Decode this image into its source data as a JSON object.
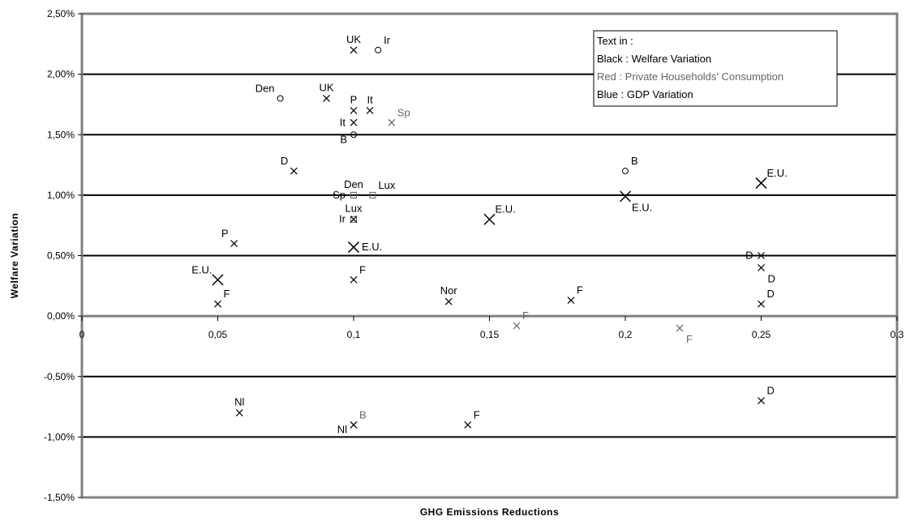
{
  "chart_data": {
    "type": "scatter",
    "xlabel": "GHG Emissions Reductions",
    "ylabel": "Welfare Variation",
    "xlim": [
      0,
      0.3
    ],
    "ylim": [
      -0.015,
      0.025
    ],
    "x_ticks": [
      0,
      0.05,
      0.1,
      0.15,
      0.2,
      0.25,
      0.3
    ],
    "x_tick_labels": [
      "0",
      "0,05",
      "0,1",
      "0,15",
      "0,2",
      "0,25",
      "0,3"
    ],
    "y_ticks": [
      0.025,
      0.02,
      0.015,
      0.01,
      0.005,
      0,
      -0.005,
      -0.01,
      -0.015
    ],
    "y_tick_labels": [
      "2,50%",
      "2,00%",
      "1,50%",
      "1,00%",
      "0,50%",
      "0,00%",
      "-0,50%",
      "-1,00%",
      "-1,50%"
    ],
    "grid": "horizontal major gridlines",
    "legend": {
      "placement": "top-right",
      "title": "Text in :",
      "entries": [
        {
          "text": "Black : Welfare Variation",
          "color": "#000000"
        },
        {
          "text": "Red : Private Households' Consumption",
          "color": "#666666"
        },
        {
          "text": "Blue : GDP Variation",
          "color": "#000000"
        }
      ]
    },
    "points": [
      {
        "x": 0.1,
        "y": 0.022,
        "marker": "x",
        "label": "UK",
        "label_pos": "top"
      },
      {
        "x": 0.109,
        "y": 0.022,
        "marker": "o",
        "label": "Ir",
        "label_pos": "top-right"
      },
      {
        "x": 0.073,
        "y": 0.018,
        "marker": "o",
        "label": "Den",
        "label_pos": "top-left"
      },
      {
        "x": 0.09,
        "y": 0.018,
        "marker": "x",
        "label": "UK",
        "label_pos": "top"
      },
      {
        "x": 0.1,
        "y": 0.017,
        "marker": "x",
        "label": "P",
        "label_pos": "top"
      },
      {
        "x": 0.106,
        "y": 0.017,
        "marker": "x",
        "label": "It",
        "label_pos": "top"
      },
      {
        "x": 0.1,
        "y": 0.016,
        "marker": "x",
        "label": "It",
        "label_pos": "left"
      },
      {
        "x": 0.114,
        "y": 0.016,
        "marker": "x",
        "label": "Sp",
        "label_pos": "top-right",
        "gray": true
      },
      {
        "x": 0.1,
        "y": 0.015,
        "marker": "o",
        "label": "B",
        "label_pos": "bottom-left"
      },
      {
        "x": 0.078,
        "y": 0.012,
        "marker": "x",
        "label": "D",
        "label_pos": "top-left"
      },
      {
        "x": 0.1,
        "y": 0.01,
        "marker": "sq",
        "label": "Den",
        "label_pos": "top"
      },
      {
        "x": 0.1,
        "y": 0.01,
        "marker": "sq",
        "label": "Sp",
        "label_pos": "left"
      },
      {
        "x": 0.107,
        "y": 0.01,
        "marker": "sq",
        "label": "Lux",
        "label_pos": "top-right"
      },
      {
        "x": 0.1,
        "y": 0.008,
        "marker": "sq",
        "label": "Lux",
        "label_pos": "top"
      },
      {
        "x": 0.1,
        "y": 0.008,
        "marker": "x",
        "label": "Ir",
        "label_pos": "left"
      },
      {
        "x": 0.1,
        "y": 0.0057,
        "marker": "X",
        "label": "E.U.",
        "label_pos": "right"
      },
      {
        "x": 0.15,
        "y": 0.008,
        "marker": "X",
        "label": "E.U.",
        "label_pos": "top-right"
      },
      {
        "x": 0.2,
        "y": 0.012,
        "marker": "o",
        "label": "B",
        "label_pos": "top-right"
      },
      {
        "x": 0.2,
        "y": 0.0099,
        "marker": "X",
        "label": "E.U.",
        "label_pos": "bottom-right"
      },
      {
        "x": 0.25,
        "y": 0.011,
        "marker": "X",
        "label": "E.U.",
        "label_pos": "top-right"
      },
      {
        "x": 0.056,
        "y": 0.006,
        "marker": "x",
        "label": "P",
        "label_pos": "top-left"
      },
      {
        "x": 0.05,
        "y": 0.003,
        "marker": "X",
        "label": "E.U.",
        "label_pos": "top-left"
      },
      {
        "x": 0.05,
        "y": 0.001,
        "marker": "x",
        "label": "F",
        "label_pos": "top-right"
      },
      {
        "x": 0.1,
        "y": 0.003,
        "marker": "x",
        "label": "F",
        "label_pos": "top-right"
      },
      {
        "x": 0.135,
        "y": 0.0012,
        "marker": "x",
        "label": "Nor",
        "label_pos": "top"
      },
      {
        "x": 0.16,
        "y": -0.0008,
        "marker": "x",
        "label": "F",
        "label_pos": "top-right",
        "gray": true
      },
      {
        "x": 0.18,
        "y": 0.0013,
        "marker": "x",
        "label": "F",
        "label_pos": "top-right"
      },
      {
        "x": 0.22,
        "y": -0.001,
        "marker": "x",
        "label": "F",
        "label_pos": "bottom-right",
        "gray": true
      },
      {
        "x": 0.25,
        "y": 0.005,
        "marker": "x",
        "label": "D",
        "label_pos": "left"
      },
      {
        "x": 0.25,
        "y": 0.004,
        "marker": "x",
        "label": "D",
        "label_pos": "bottom-right"
      },
      {
        "x": 0.25,
        "y": 0.001,
        "marker": "x",
        "label": "D",
        "label_pos": "top-right"
      },
      {
        "x": 0.058,
        "y": -0.008,
        "marker": "x",
        "label": "Nl",
        "label_pos": "top"
      },
      {
        "x": 0.1,
        "y": -0.009,
        "marker": "x",
        "label": "B",
        "label_pos": "top-right",
        "gray": true
      },
      {
        "x": 0.1,
        "y": -0.009,
        "marker": "x",
        "label": "Nl",
        "label_pos": "bottom-left"
      },
      {
        "x": 0.142,
        "y": -0.009,
        "marker": "x",
        "label": "F",
        "label_pos": "top-right"
      },
      {
        "x": 0.25,
        "y": -0.007,
        "marker": "x",
        "label": "D",
        "label_pos": "top-right"
      }
    ]
  }
}
